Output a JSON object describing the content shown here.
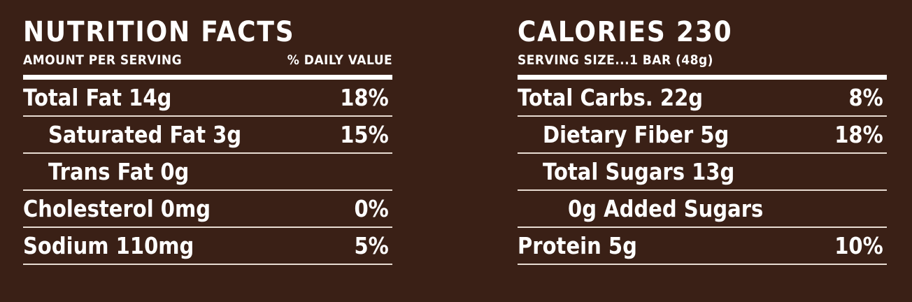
{
  "left": {
    "title": "NUTRITION FACTS",
    "subhead_left": "AMOUNT PER SERVING",
    "subhead_right": "% DAILY VALUE",
    "rows": [
      {
        "name": "Total Fat 14g",
        "dv": "18%"
      },
      {
        "name": "Saturated Fat 3g",
        "dv": "15%"
      },
      {
        "name": "Trans Fat 0g",
        "dv": ""
      },
      {
        "name": "Cholesterol 0mg",
        "dv": "0%"
      },
      {
        "name": "Sodium 110mg",
        "dv": "5%"
      }
    ]
  },
  "right": {
    "title": "CALORIES 230",
    "subhead_left": "SERVING SIZE...1 BAR (48g)",
    "rows": [
      {
        "name": "Total Carbs. 22g",
        "dv": "8%"
      },
      {
        "name": "Dietary Fiber 5g",
        "dv": "18%"
      },
      {
        "name": "Total Sugars 13g",
        "dv": ""
      },
      {
        "name": "0g Added Sugars",
        "dv": ""
      },
      {
        "name": "Protein 5g",
        "dv": "10%"
      }
    ]
  },
  "colors": {
    "background": "#3a2016",
    "text": "#ffffff"
  }
}
